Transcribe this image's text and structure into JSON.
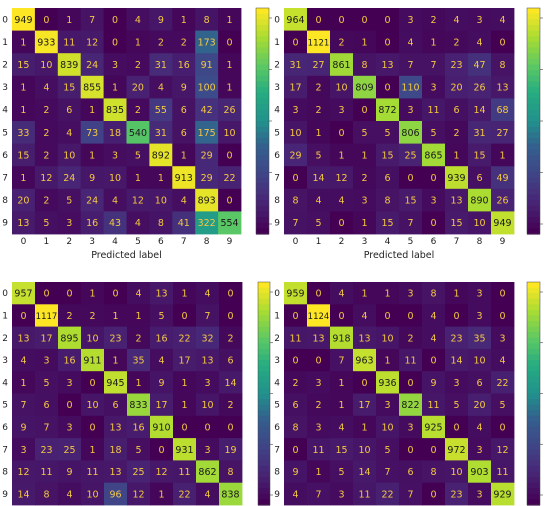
{
  "chart_data": [
    {
      "type": "heatmap",
      "title": "",
      "xlabel": "Predicted label",
      "ylabel": "",
      "x_ticks": [
        "0",
        "1",
        "2",
        "3",
        "4",
        "5",
        "6",
        "7",
        "8",
        "9"
      ],
      "y_ticks": [
        "0",
        "1",
        "2",
        "3",
        "4",
        "5",
        "6",
        "7",
        "8",
        "9"
      ],
      "colorbar": true,
      "matrix": [
        [
          949,
          0,
          1,
          7,
          0,
          4,
          9,
          1,
          8,
          1
        ],
        [
          1,
          933,
          11,
          12,
          0,
          1,
          2,
          2,
          173,
          0
        ],
        [
          15,
          10,
          839,
          24,
          3,
          2,
          31,
          16,
          91,
          1
        ],
        [
          1,
          4,
          15,
          855,
          1,
          20,
          4,
          9,
          100,
          1
        ],
        [
          1,
          2,
          6,
          1,
          835,
          2,
          55,
          6,
          42,
          26
        ],
        [
          33,
          2,
          4,
          73,
          18,
          540,
          31,
          6,
          175,
          10
        ],
        [
          15,
          2,
          10,
          1,
          3,
          5,
          892,
          1,
          29,
          0
        ],
        [
          1,
          12,
          24,
          9,
          10,
          1,
          1,
          913,
          29,
          22
        ],
        [
          20,
          2,
          5,
          24,
          4,
          12,
          10,
          4,
          893,
          0
        ],
        [
          13,
          5,
          3,
          16,
          43,
          4,
          8,
          41,
          322,
          554
        ]
      ]
    },
    {
      "type": "heatmap",
      "title": "",
      "xlabel": "Predicted label",
      "ylabel": "",
      "x_ticks": [
        "0",
        "1",
        "2",
        "3",
        "4",
        "5",
        "6",
        "7",
        "8",
        "9"
      ],
      "y_ticks": [
        "0",
        "1",
        "2",
        "3",
        "4",
        "5",
        "6",
        "7",
        "8",
        "9"
      ],
      "colorbar": true,
      "matrix": [
        [
          964,
          0,
          0,
          0,
          0,
          3,
          2,
          4,
          3,
          4
        ],
        [
          0,
          1121,
          2,
          1,
          0,
          4,
          1,
          2,
          4,
          0
        ],
        [
          31,
          27,
          861,
          8,
          13,
          7,
          7,
          23,
          47,
          8
        ],
        [
          17,
          2,
          10,
          809,
          0,
          110,
          3,
          20,
          26,
          13
        ],
        [
          3,
          2,
          3,
          0,
          872,
          3,
          11,
          6,
          14,
          68
        ],
        [
          10,
          1,
          0,
          5,
          5,
          806,
          5,
          2,
          31,
          27
        ],
        [
          29,
          5,
          1,
          1,
          15,
          25,
          865,
          1,
          15,
          1
        ],
        [
          0,
          14,
          12,
          2,
          6,
          0,
          0,
          939,
          6,
          49
        ],
        [
          8,
          4,
          4,
          3,
          8,
          15,
          3,
          13,
          890,
          26
        ],
        [
          7,
          5,
          0,
          1,
          15,
          7,
          0,
          15,
          10,
          949
        ]
      ]
    },
    {
      "type": "heatmap",
      "title": "",
      "xlabel": "",
      "ylabel": "",
      "x_ticks": [],
      "y_ticks": [
        "0",
        "1",
        "2",
        "3",
        "4",
        "5",
        "6",
        "7",
        "8",
        "9"
      ],
      "colorbar": true,
      "matrix": [
        [
          957,
          0,
          0,
          1,
          0,
          4,
          13,
          1,
          4,
          0
        ],
        [
          0,
          1117,
          2,
          2,
          1,
          1,
          5,
          0,
          7,
          0
        ],
        [
          13,
          17,
          895,
          10,
          23,
          2,
          16,
          22,
          32,
          2
        ],
        [
          4,
          3,
          16,
          911,
          1,
          35,
          4,
          17,
          13,
          6
        ],
        [
          1,
          5,
          3,
          0,
          945,
          1,
          9,
          1,
          3,
          14
        ],
        [
          7,
          6,
          0,
          10,
          6,
          833,
          17,
          1,
          10,
          2
        ],
        [
          9,
          7,
          3,
          0,
          13,
          16,
          910,
          0,
          0,
          0
        ],
        [
          3,
          23,
          25,
          1,
          18,
          5,
          0,
          931,
          3,
          19
        ],
        [
          12,
          11,
          9,
          11,
          13,
          25,
          12,
          11,
          862,
          8
        ],
        [
          14,
          8,
          4,
          10,
          96,
          12,
          1,
          22,
          4,
          838
        ]
      ]
    },
    {
      "type": "heatmap",
      "title": "",
      "xlabel": "",
      "ylabel": "",
      "x_ticks": [],
      "y_ticks": [
        "0",
        "1",
        "2",
        "3",
        "4",
        "5",
        "6",
        "7",
        "8",
        "9"
      ],
      "colorbar": true,
      "matrix": [
        [
          959,
          0,
          4,
          1,
          1,
          3,
          8,
          1,
          3,
          0
        ],
        [
          0,
          1124,
          0,
          4,
          0,
          0,
          4,
          0,
          3,
          0
        ],
        [
          11,
          13,
          918,
          13,
          10,
          2,
          4,
          23,
          35,
          3
        ],
        [
          0,
          0,
          7,
          963,
          1,
          11,
          0,
          14,
          10,
          4
        ],
        [
          2,
          3,
          1,
          0,
          936,
          0,
          9,
          3,
          6,
          22
        ],
        [
          6,
          2,
          1,
          17,
          3,
          822,
          11,
          5,
          20,
          5
        ],
        [
          8,
          3,
          4,
          1,
          10,
          3,
          925,
          0,
          4,
          0
        ],
        [
          0,
          11,
          15,
          10,
          5,
          0,
          0,
          972,
          3,
          12
        ],
        [
          9,
          1,
          5,
          14,
          7,
          6,
          8,
          10,
          903,
          11
        ],
        [
          4,
          7,
          3,
          11,
          22,
          7,
          0,
          23,
          3,
          929
        ]
      ]
    }
  ]
}
